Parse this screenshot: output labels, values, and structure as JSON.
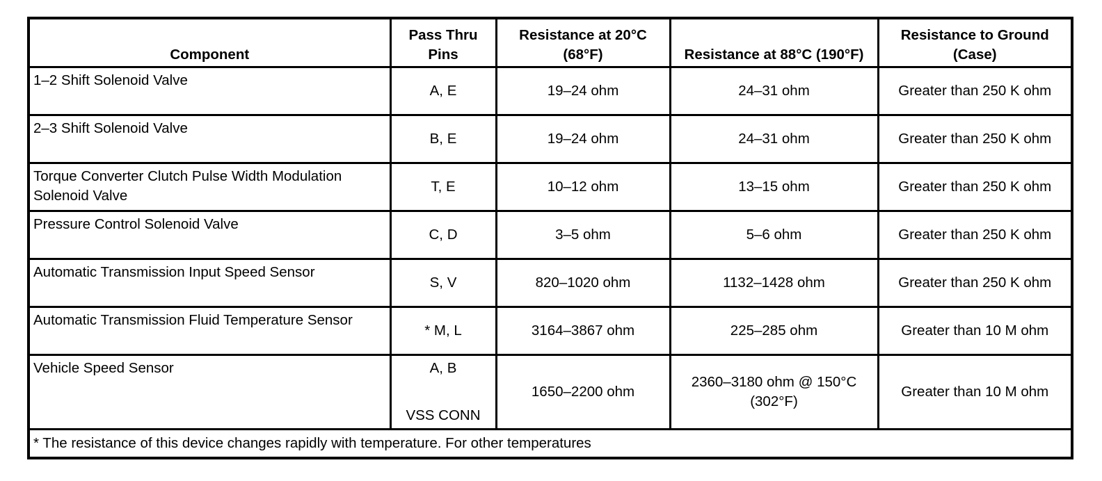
{
  "headers": {
    "component": "Component",
    "pins": "Pass Thru Pins",
    "r20": "Resistance at 20°C (68°F)",
    "r88": "Resistance at 88°C (190°F)",
    "ground": "Resistance to Ground (Case)"
  },
  "rows": [
    {
      "component": "1–2 Shift Solenoid Valve",
      "pins": "A, E",
      "r20": "19–24 ohm",
      "r88": "24–31 ohm",
      "ground": "Greater than 250 K ohm"
    },
    {
      "component": "2–3 Shift Solenoid Valve",
      "pins": "B, E",
      "r20": "19–24 ohm",
      "r88": "24–31 ohm",
      "ground": "Greater than 250 K ohm"
    },
    {
      "component": "Torque Converter Clutch Pulse Width Modulation Solenoid Valve",
      "pins": "T, E",
      "r20": "10–12 ohm",
      "r88": "13–15 ohm",
      "ground": "Greater than 250 K ohm"
    },
    {
      "component": "Pressure Control Solenoid Valve",
      "pins": "C, D",
      "r20": "3–5 ohm",
      "r88": "5–6 ohm",
      "ground": "Greater than 250 K ohm"
    },
    {
      "component": "Automatic Transmission Input Speed Sensor",
      "pins": "S, V",
      "r20": "820–1020 ohm",
      "r88": "1132–1428 ohm",
      "ground": "Greater than 250 K ohm"
    },
    {
      "component": "Automatic Transmission Fluid Temperature Sensor",
      "pins": "* M, L",
      "r20": "3164–3867 ohm",
      "r88": "225–285 ohm",
      "ground": "Greater than 10 M ohm"
    },
    {
      "component": "Vehicle Speed Sensor",
      "pins": "A, B",
      "pins_extra": "VSS CONN",
      "r20": "1650–2200 ohm",
      "r88": "2360–3180 ohm @ 150°C (302°F)",
      "ground": "Greater than 10 M ohm"
    }
  ],
  "footnote": "* The resistance of this device changes rapidly with temperature. For other temperatures"
}
